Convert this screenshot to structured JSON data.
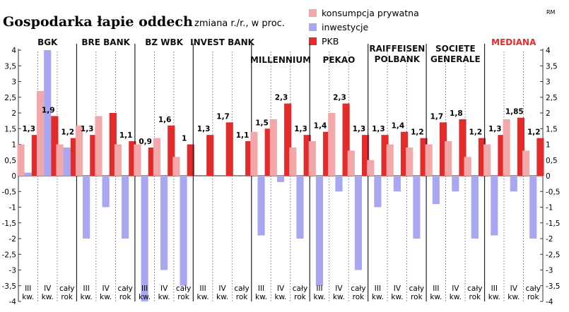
{
  "title": "Gospodarka łapie oddech",
  "subtitle": "zmiana r./r., w proc.",
  "credit": "RM",
  "legend": [
    {
      "name": "konsumpcja prywatna",
      "color": "#f2a7a8"
    },
    {
      "name": "inwestycje",
      "color": "#a9a6f2"
    },
    {
      "name": "PKB",
      "color": "#e32b2b"
    }
  ],
  "chart_data": {
    "type": "bar",
    "title": "Gospodarka łapie oddech",
    "ylabel": "zmiana r./r., w proc.",
    "ylim": [
      -4,
      4
    ],
    "yticks": [
      4,
      3.5,
      3,
      2.5,
      2,
      1.5,
      1,
      0.5,
      0,
      -0.5,
      -1,
      -1.5,
      -2,
      -2.5,
      -3,
      -3.5,
      -4
    ],
    "ytick_labels": [
      "4",
      "3,5",
      "3",
      "2,5",
      "2",
      "1,5",
      "1",
      "0,5",
      "0",
      "-0,5",
      "-1",
      "-1,5",
      "-2",
      "-2,5",
      "-3",
      "-3,5",
      "-4"
    ],
    "categories": [
      "III kw.",
      "IV kw.",
      "cały rok"
    ],
    "groups": [
      {
        "name": "BGK",
        "highlight": false,
        "consumption": [
          1.0,
          2.7,
          1.0
        ],
        "investment": [
          0.1,
          4.0,
          0.9
        ],
        "gdp": [
          1.3,
          1.9,
          1.2
        ],
        "labels": [
          "1,3",
          "1,9",
          "1,2"
        ]
      },
      {
        "name": "BRE BANK",
        "highlight": false,
        "consumption": [
          1.6,
          1.9,
          1.0
        ],
        "investment": [
          -2.0,
          -1.0,
          -2.0
        ],
        "gdp": [
          1.3,
          2.0,
          1.1
        ],
        "labels": [
          "1,3",
          "",
          "1,1"
        ]
      },
      {
        "name": "BZ WBK",
        "highlight": false,
        "consumption": [
          1.0,
          1.2,
          0.6
        ],
        "investment": [
          -4.0,
          -3.0,
          -3.5
        ],
        "gdp": [
          0.9,
          1.6,
          1.0
        ],
        "labels": [
          "0,9",
          "1,6",
          "1"
        ]
      },
      {
        "name": "INVEST BANK",
        "highlight": false,
        "consumption": [
          null,
          null,
          null
        ],
        "investment": [
          null,
          null,
          null
        ],
        "gdp": [
          1.3,
          1.7,
          1.1
        ],
        "labels": [
          "1,3",
          "1,7",
          "1,1"
        ]
      },
      {
        "name": "MILLENNIUM",
        "highlight": false,
        "consumption": [
          1.4,
          1.8,
          0.9
        ],
        "investment": [
          -1.9,
          -0.2,
          -2.0
        ],
        "gdp": [
          1.5,
          2.3,
          1.3
        ],
        "labels": [
          "1,5",
          "2,3",
          "1,3"
        ]
      },
      {
        "name": "PEKAO",
        "highlight": false,
        "consumption": [
          1.1,
          2.0,
          0.8
        ],
        "investment": [
          -3.5,
          -0.5,
          -3.0
        ],
        "gdp": [
          1.4,
          2.3,
          1.3
        ],
        "labels": [
          "1,4",
          "2,3",
          "1,3"
        ]
      },
      {
        "name": "RAIFFEISEN POLBANK",
        "highlight": false,
        "consumption": [
          0.5,
          1.0,
          0.9
        ],
        "investment": [
          -1.0,
          -0.5,
          -2.0
        ],
        "gdp": [
          1.3,
          1.4,
          1.2
        ],
        "labels": [
          "1,3",
          "1,4",
          "1,2"
        ]
      },
      {
        "name": "SOCIETE GENERALE",
        "highlight": false,
        "consumption": [
          1.0,
          1.1,
          0.6
        ],
        "investment": [
          -0.9,
          -0.5,
          -2.0
        ],
        "gdp": [
          1.7,
          1.8,
          1.2
        ],
        "labels": [
          "1,7",
          "1,8",
          "1,2"
        ]
      },
      {
        "name": "MEDIANA",
        "highlight": true,
        "consumption": [
          1.0,
          1.8,
          0.8
        ],
        "investment": [
          -1.9,
          -0.5,
          -2.0
        ],
        "gdp": [
          1.3,
          1.85,
          1.2
        ],
        "labels": [
          "1,3",
          "1,85",
          "1,2"
        ]
      }
    ]
  }
}
